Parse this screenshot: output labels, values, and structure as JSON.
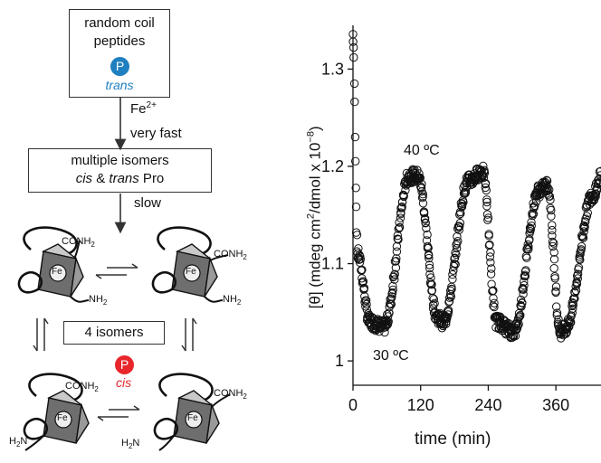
{
  "scheme": {
    "box_top_line1": "random coil",
    "box_top_line2": "peptides",
    "phospho_top_letter": "P",
    "trans_label": "trans",
    "fe_label": "Fe",
    "fe_charge": "2+",
    "very_fast_label": "very fast",
    "box_mid_line1": "multiple isomers",
    "box_mid_cis": "cis",
    "box_mid_amp": " & ",
    "box_mid_trans": "trans",
    "box_mid_pro": " Pro",
    "slow_label": "slow",
    "four_isomers_label": "4 isomers",
    "phospho_bottom_letter": "P",
    "cis_label": "cis",
    "conh2": "CONH",
    "nh2": "NH",
    "h2n": "H",
    "h2n_n": "N",
    "sub2": "2",
    "fe_center": "Fe",
    "colors": {
      "blue": "#1f7fc1",
      "red": "#e8262b",
      "dark_gray": "#6e6e6e",
      "light_gray": "#c9c9c9"
    }
  },
  "chart_data": {
    "type": "scatter",
    "xlabel": "time (min)",
    "ylabel_prefix": "[θ] (mdeg cm",
    "ylabel_mid": "/dmol x 10",
    "ylabel_sup1": "2",
    "ylabel_sup2": "−8",
    "ylabel_suffix": ")",
    "xlim": [
      0,
      440
    ],
    "ylim": [
      0.975,
      1.345
    ],
    "xticks": [
      "0",
      "120",
      "240",
      "360"
    ],
    "xtick_values": [
      0,
      120,
      240,
      360
    ],
    "yticks": [
      "1",
      "1.1",
      "1.2",
      "1.3"
    ],
    "ytick_values": [
      1.0,
      1.1,
      1.2,
      1.3
    ],
    "annotation_hot": "40 ºC",
    "annotation_cold": "30 ºC",
    "marker": "open-circle",
    "segments": [
      {
        "x_start": 0,
        "x_end": 8,
        "y_start": 1.335,
        "y_end": 1.11
      },
      {
        "x_start": 8,
        "x_end": 30,
        "y_start": 1.11,
        "y_end": 1.04
      },
      {
        "x_start": 30,
        "x_end": 55,
        "y_start": 1.04,
        "y_end": 1.035
      },
      {
        "x_start": 55,
        "x_end": 100,
        "y_start": 1.035,
        "y_end": 1.19
      },
      {
        "x_start": 100,
        "x_end": 115,
        "y_start": 1.19,
        "y_end": 1.19
      },
      {
        "x_start": 115,
        "x_end": 150,
        "y_start": 1.19,
        "y_end": 1.045
      },
      {
        "x_start": 150,
        "x_end": 160,
        "y_start": 1.045,
        "y_end": 1.04
      },
      {
        "x_start": 160,
        "x_end": 205,
        "y_start": 1.04,
        "y_end": 1.185
      },
      {
        "x_start": 205,
        "x_end": 230,
        "y_start": 1.185,
        "y_end": 1.195
      },
      {
        "x_start": 230,
        "x_end": 255,
        "y_start": 1.195,
        "y_end": 1.04
      },
      {
        "x_start": 255,
        "x_end": 285,
        "y_start": 1.04,
        "y_end": 1.03
      },
      {
        "x_start": 285,
        "x_end": 330,
        "y_start": 1.03,
        "y_end": 1.175
      },
      {
        "x_start": 330,
        "x_end": 345,
        "y_start": 1.175,
        "y_end": 1.18
      },
      {
        "x_start": 345,
        "x_end": 368,
        "y_start": 1.18,
        "y_end": 1.03
      },
      {
        "x_start": 368,
        "x_end": 378,
        "y_start": 1.03,
        "y_end": 1.035
      },
      {
        "x_start": 378,
        "x_end": 425,
        "y_start": 1.035,
        "y_end": 1.17
      },
      {
        "x_start": 425,
        "x_end": 440,
        "y_start": 1.17,
        "y_end": 1.19
      }
    ]
  }
}
